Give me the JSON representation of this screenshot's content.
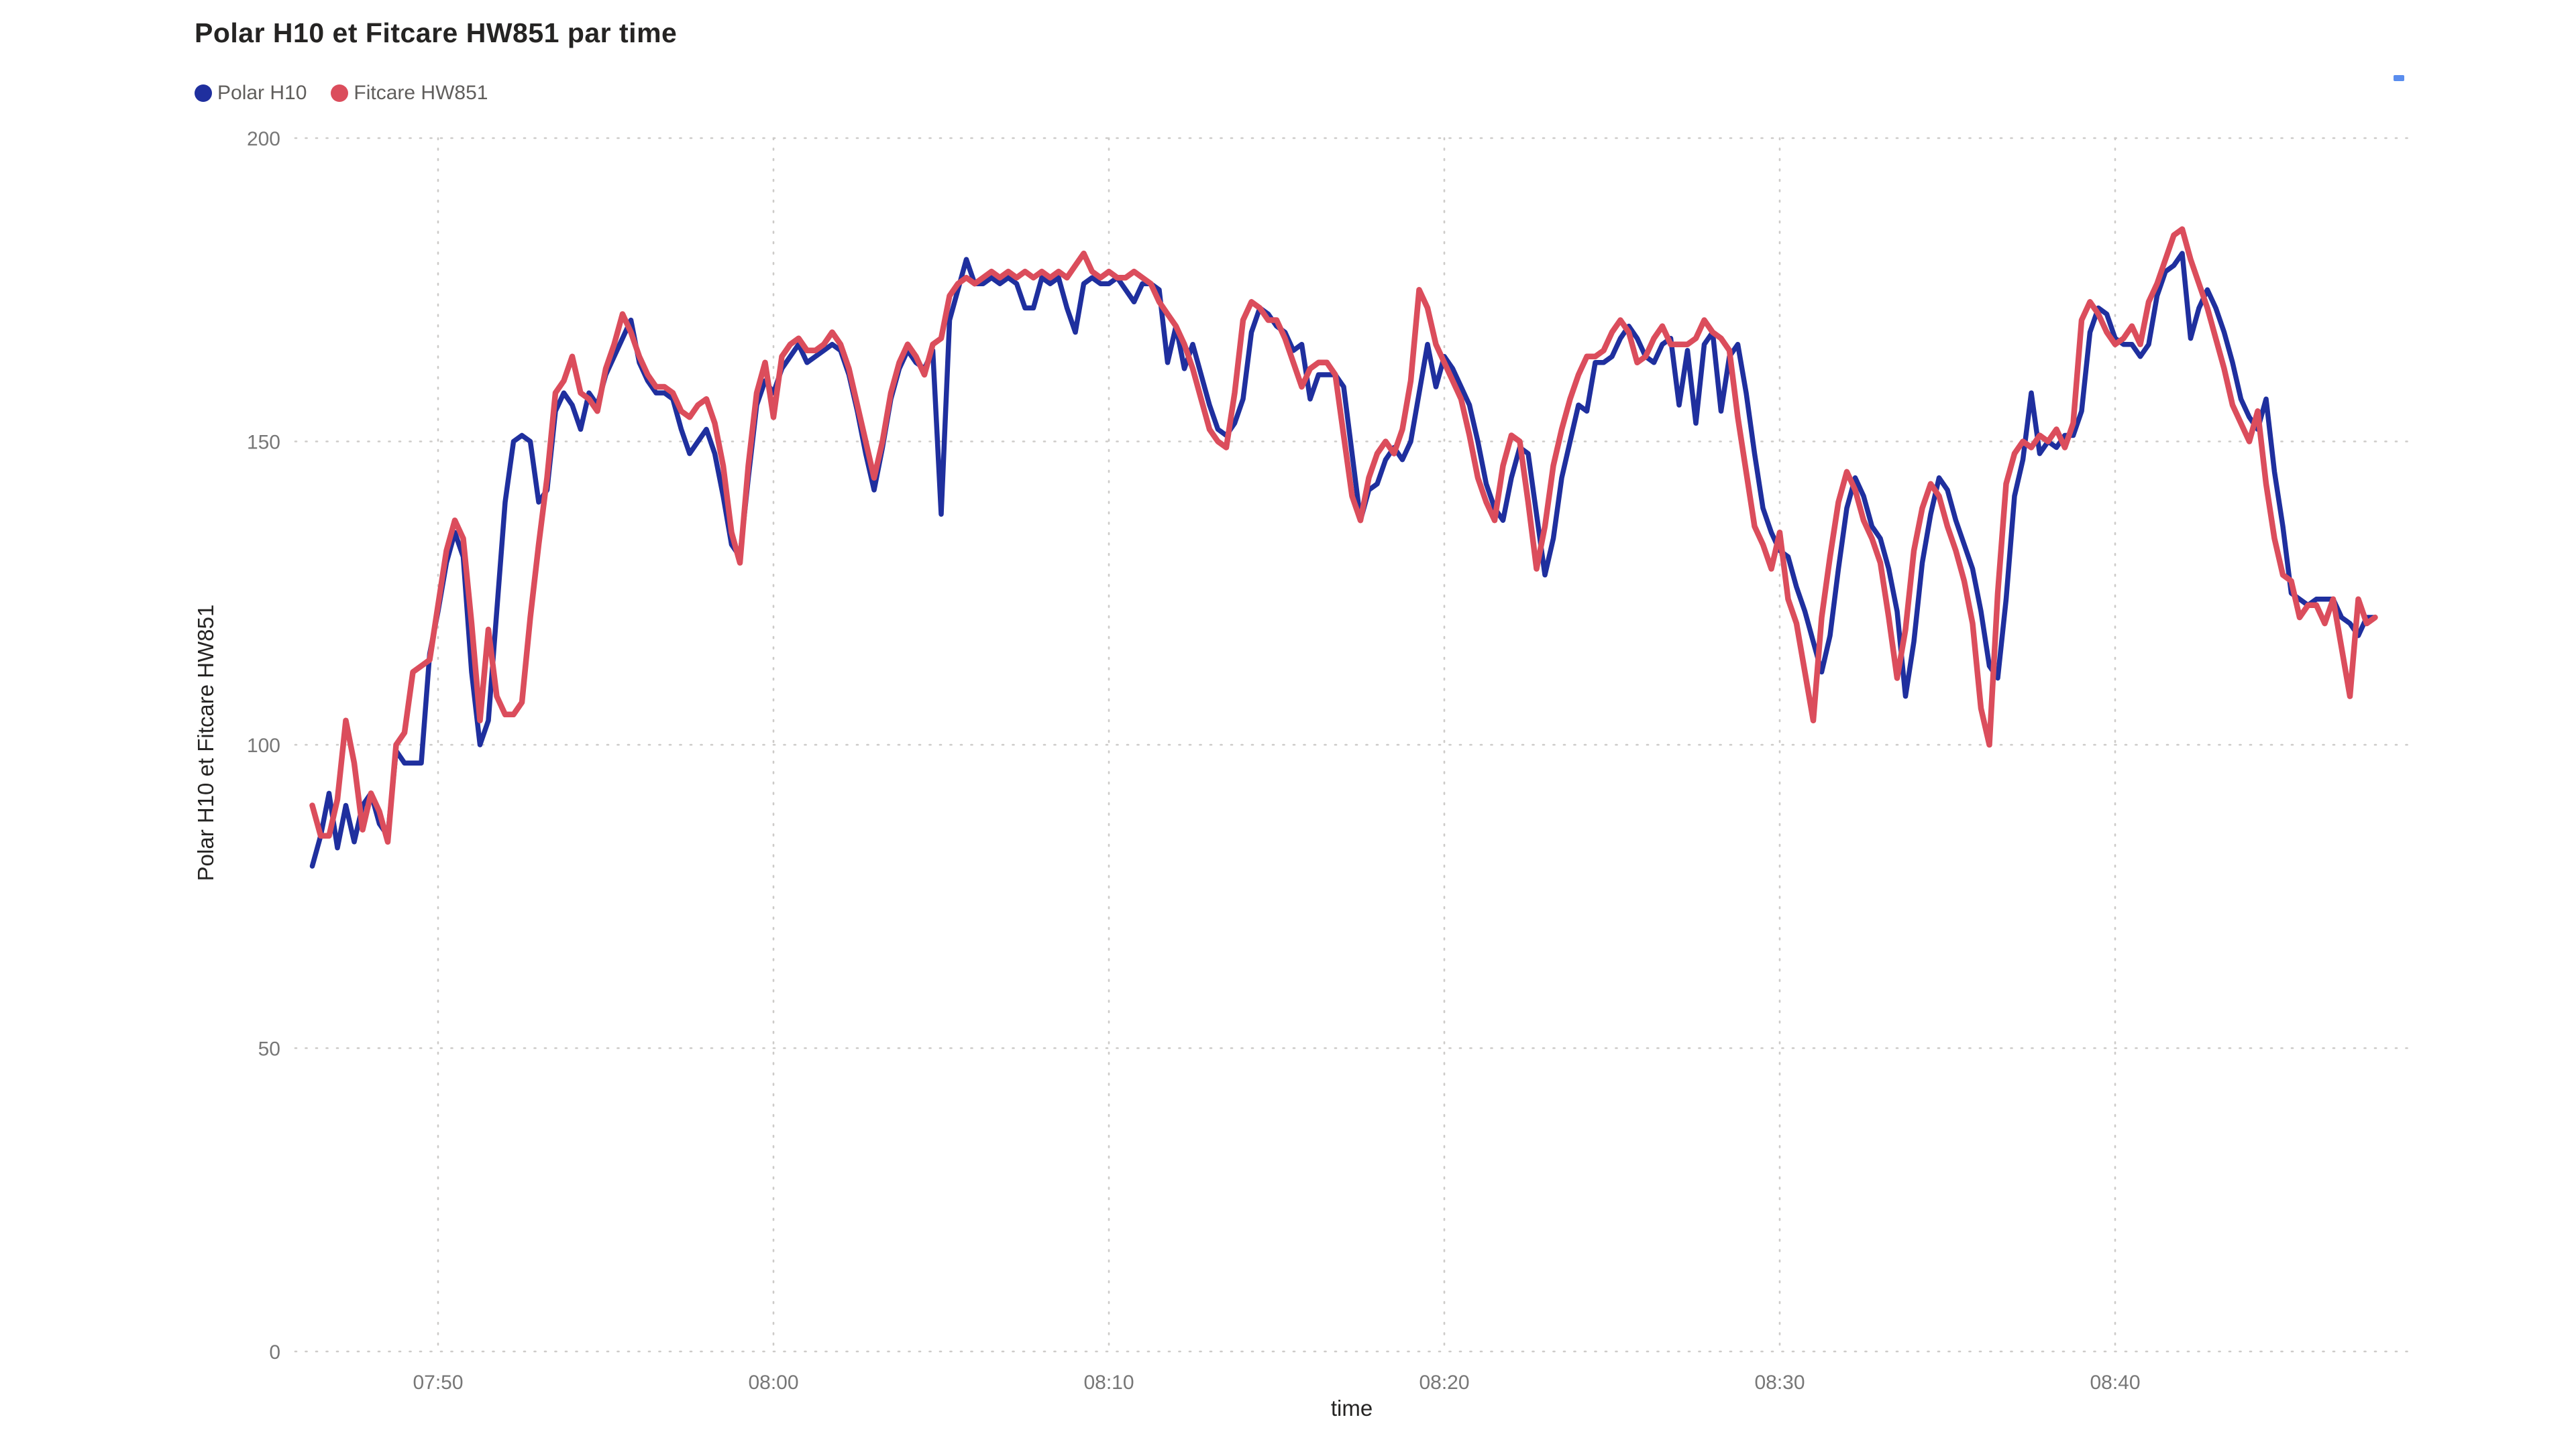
{
  "page": {
    "background": "#FFFFFF"
  },
  "header": {
    "title": "Polar H10 et Fitcare HW851 par time"
  },
  "legend": {
    "items": [
      {
        "label": "Polar H10",
        "color": "#1F2F9E"
      },
      {
        "label": "Fitcare HW851",
        "color": "#DB4D5C"
      }
    ]
  },
  "decorations": {
    "corner_mark_color": "#5A8DEE"
  },
  "chart_data": {
    "type": "line",
    "title": "Polar H10 et Fitcare HW851 par time",
    "xlabel": "time",
    "ylabel": "Polar H10 et Fitcare HW851",
    "grid": "dotted",
    "grid_color": "#CDCBC9",
    "legend_position": "top-left",
    "x_axis": {
      "tick_labels": [
        "07:50",
        "08:00",
        "08:10",
        "08:20",
        "08:30",
        "08:40"
      ],
      "tick_minutes": [
        470,
        480,
        490,
        500,
        510,
        520
      ],
      "domain_minutes": [
        465.74,
        528.6
      ]
    },
    "y_axis": {
      "ticks": [
        0,
        50,
        100,
        150,
        200
      ],
      "range": [
        0,
        200
      ]
    },
    "series": [
      {
        "name": "Polar H10",
        "color": "#1F2F9E",
        "t0_min": 466.25,
        "dt_min": 0.25,
        "values": [
          80,
          85,
          92,
          83,
          90,
          84,
          90,
          92,
          87,
          85,
          99,
          97,
          97,
          97,
          115,
          122,
          130,
          135,
          131,
          112,
          100,
          104,
          122,
          140,
          150,
          151,
          150,
          140,
          142,
          155,
          158,
          156,
          152,
          158,
          156,
          161,
          164,
          167,
          170,
          163,
          160,
          158,
          158,
          157,
          152,
          148,
          150,
          152,
          148,
          141,
          133,
          131,
          144,
          156,
          160,
          158,
          162,
          164,
          166,
          163,
          164,
          165,
          166,
          165,
          161,
          155,
          148,
          142,
          149,
          157,
          162,
          165,
          163,
          162,
          165,
          138,
          170,
          175,
          180,
          176,
          176,
          177,
          176,
          177,
          176,
          172,
          172,
          177,
          176,
          177,
          172,
          168,
          176,
          177,
          176,
          176,
          177,
          175,
          173,
          176,
          176,
          175,
          163,
          169,
          162,
          166,
          161,
          156,
          152,
          151,
          153,
          157,
          168,
          172,
          171,
          169,
          168,
          165,
          166,
          157,
          161,
          161,
          161,
          159,
          148,
          137,
          142,
          143,
          147,
          149,
          147,
          150,
          158,
          166,
          159,
          164,
          162,
          159,
          156,
          150,
          143,
          139,
          137,
          144,
          149,
          148,
          138,
          128,
          134,
          144,
          150,
          156,
          155,
          163,
          163,
          164,
          167,
          169,
          167,
          164,
          163,
          166,
          167,
          156,
          165,
          153,
          166,
          168,
          155,
          164,
          166,
          158,
          148,
          139,
          135,
          132,
          131,
          126,
          122,
          117,
          112,
          118,
          129,
          139,
          144,
          141,
          136,
          134,
          129,
          122,
          108,
          117,
          130,
          138,
          144,
          142,
          137,
          133,
          129,
          122,
          113,
          111,
          124,
          141,
          147,
          158,
          148,
          150,
          149,
          151,
          151,
          155,
          168,
          172,
          171,
          167,
          166,
          166,
          164,
          166,
          174,
          178,
          179,
          181,
          167,
          172,
          175,
          172,
          168,
          163,
          157,
          154,
          152,
          157,
          145,
          136,
          125,
          124,
          123,
          124,
          124,
          124,
          121,
          120,
          118,
          121,
          121
        ]
      },
      {
        "name": "Fitcare HW851",
        "color": "#DB4D5C",
        "t0_min": 466.25,
        "dt_min": 0.25,
        "values": [
          90,
          85,
          85,
          91,
          104,
          97,
          86,
          92,
          89,
          84,
          100,
          102,
          112,
          113,
          114,
          123,
          132,
          137,
          134,
          120,
          104,
          119,
          108,
          105,
          105,
          107,
          121,
          133,
          144,
          158,
          160,
          164,
          158,
          157,
          155,
          162,
          166,
          171,
          168,
          164,
          161,
          159,
          159,
          158,
          155,
          154,
          156,
          157,
          153,
          146,
          135,
          130,
          146,
          158,
          163,
          154,
          164,
          166,
          167,
          165,
          165,
          166,
          168,
          166,
          162,
          156,
          150,
          144,
          150,
          158,
          163,
          166,
          164,
          161,
          166,
          167,
          174,
          176,
          177,
          176,
          177,
          178,
          177,
          178,
          177,
          178,
          177,
          178,
          177,
          178,
          177,
          179,
          181,
          178,
          177,
          178,
          177,
          177,
          178,
          177,
          176,
          173,
          171,
          169,
          166,
          162,
          157,
          152,
          150,
          149,
          158,
          170,
          173,
          172,
          170,
          170,
          167,
          163,
          159,
          162,
          163,
          163,
          161,
          151,
          141,
          137,
          144,
          148,
          150,
          148,
          152,
          160,
          175,
          172,
          166,
          163,
          160,
          157,
          151,
          144,
          140,
          137,
          146,
          151,
          150,
          140,
          129,
          136,
          146,
          152,
          157,
          161,
          164,
          164,
          165,
          168,
          170,
          168,
          163,
          164,
          167,
          169,
          166,
          166,
          166,
          167,
          170,
          168,
          167,
          165,
          154,
          145,
          136,
          133,
          129,
          135,
          124,
          120,
          112,
          104,
          121,
          131,
          140,
          145,
          142,
          137,
          134,
          130,
          121,
          111,
          119,
          132,
          139,
          143,
          141,
          136,
          132,
          127,
          120,
          106,
          100,
          125,
          143,
          148,
          150,
          149,
          151,
          150,
          152,
          149,
          153,
          170,
          173,
          171,
          168,
          166,
          167,
          169,
          166,
          173,
          176,
          180,
          184,
          185,
          180,
          176,
          172,
          167,
          162,
          156,
          153,
          150,
          155,
          143,
          134,
          128,
          127,
          121,
          123,
          123,
          120,
          124,
          116,
          108,
          124,
          120,
          121
        ]
      }
    ]
  }
}
